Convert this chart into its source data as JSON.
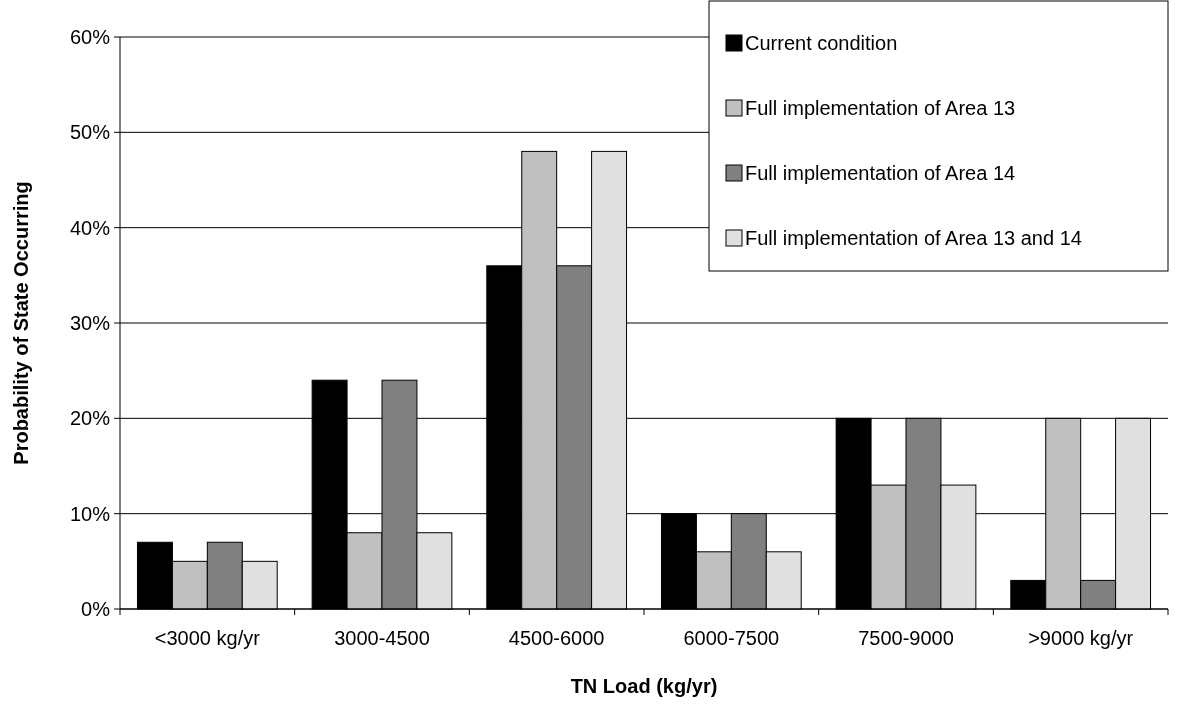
{
  "chart_data": {
    "type": "bar",
    "xlabel": "TN Load (kg/yr)",
    "ylabel": "Probability of State Occurring",
    "categories": [
      "<3000 kg/yr",
      "3000-4500",
      "4500-6000",
      "6000-7500",
      "7500-9000",
      ">9000 kg/yr"
    ],
    "series": [
      {
        "name": "Current condition",
        "color": "#000000",
        "values": [
          7,
          24,
          36,
          10,
          20,
          3
        ]
      },
      {
        "name": "Full implementation of Area 13",
        "color": "#c0c0c0",
        "values": [
          5,
          8,
          48,
          6,
          13,
          20
        ]
      },
      {
        "name": "Full implementation of Area 14",
        "color": "#808080",
        "values": [
          7,
          24,
          36,
          10,
          20,
          3
        ]
      },
      {
        "name": "Full implementation of Area 13 and 14",
        "color": "#e0e0e0",
        "values": [
          5,
          8,
          48,
          6,
          13,
          20
        ]
      }
    ],
    "ylim": [
      0,
      60
    ],
    "yticks": [
      {
        "value": 0,
        "label": "0%"
      },
      {
        "value": 10,
        "label": "10%"
      },
      {
        "value": 20,
        "label": "20%"
      },
      {
        "value": 30,
        "label": "30%"
      },
      {
        "value": 40,
        "label": "40%"
      },
      {
        "value": 50,
        "label": "50%"
      },
      {
        "value": 60,
        "label": "60%"
      }
    ],
    "grid": "y",
    "legend": "top right"
  }
}
